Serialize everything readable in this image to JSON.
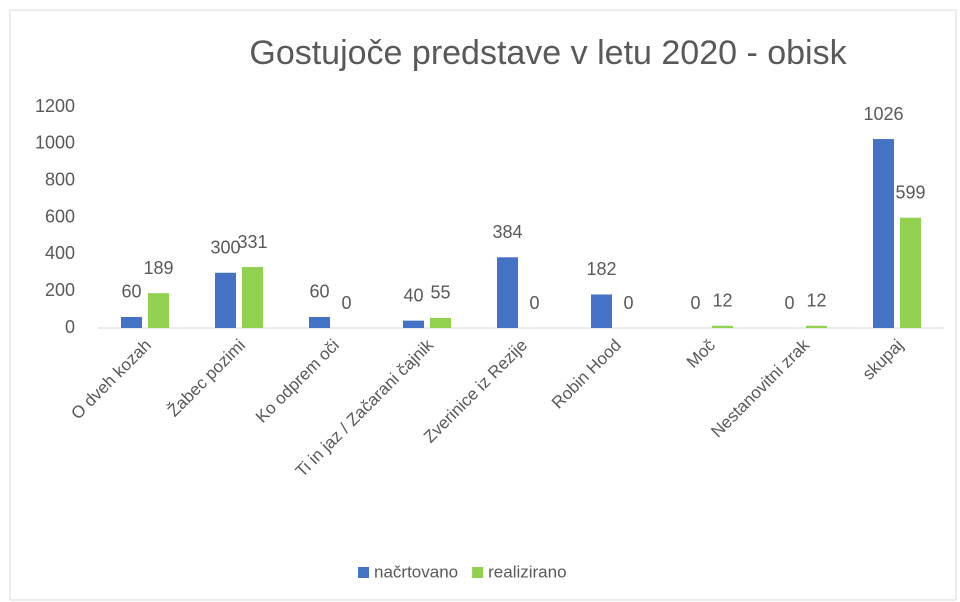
{
  "chart_data": {
    "type": "bar",
    "title": "Gostujoče predstave v letu 2020 - obisk",
    "categories": [
      "O dveh kozah",
      "Žabec pozimi",
      "Ko odprem oči",
      "Ti in jaz / Začarani čajnik",
      "Zverinice iz Rezije",
      "Robin Hood",
      "Moč",
      "Nestanovitni zrak",
      "skupaj"
    ],
    "series": [
      {
        "name": "načrtovano",
        "color": "#4472c4",
        "values": [
          60,
          300,
          60,
          40,
          384,
          182,
          0,
          0,
          1026
        ]
      },
      {
        "name": "realizirano",
        "color": "#92d050",
        "values": [
          189,
          331,
          0,
          55,
          0,
          0,
          12,
          12,
          599
        ]
      }
    ],
    "ylim": [
      0,
      1200
    ],
    "yticks": [
      0,
      200,
      400,
      600,
      800,
      1000,
      1200
    ],
    "grid": false,
    "legend": "bottom"
  }
}
